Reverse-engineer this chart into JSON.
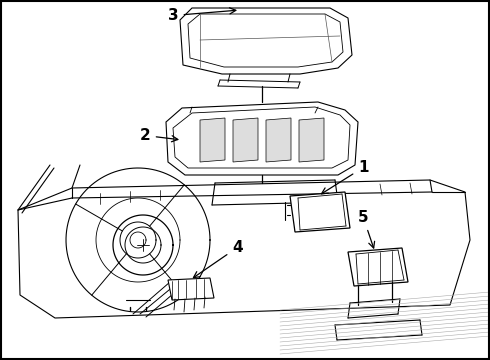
{
  "bg_color": "#ffffff",
  "line_color": "#000000",
  "label_color": "#000000",
  "label_fontsize": 11,
  "figsize": [
    4.9,
    3.6
  ],
  "dpi": 100
}
